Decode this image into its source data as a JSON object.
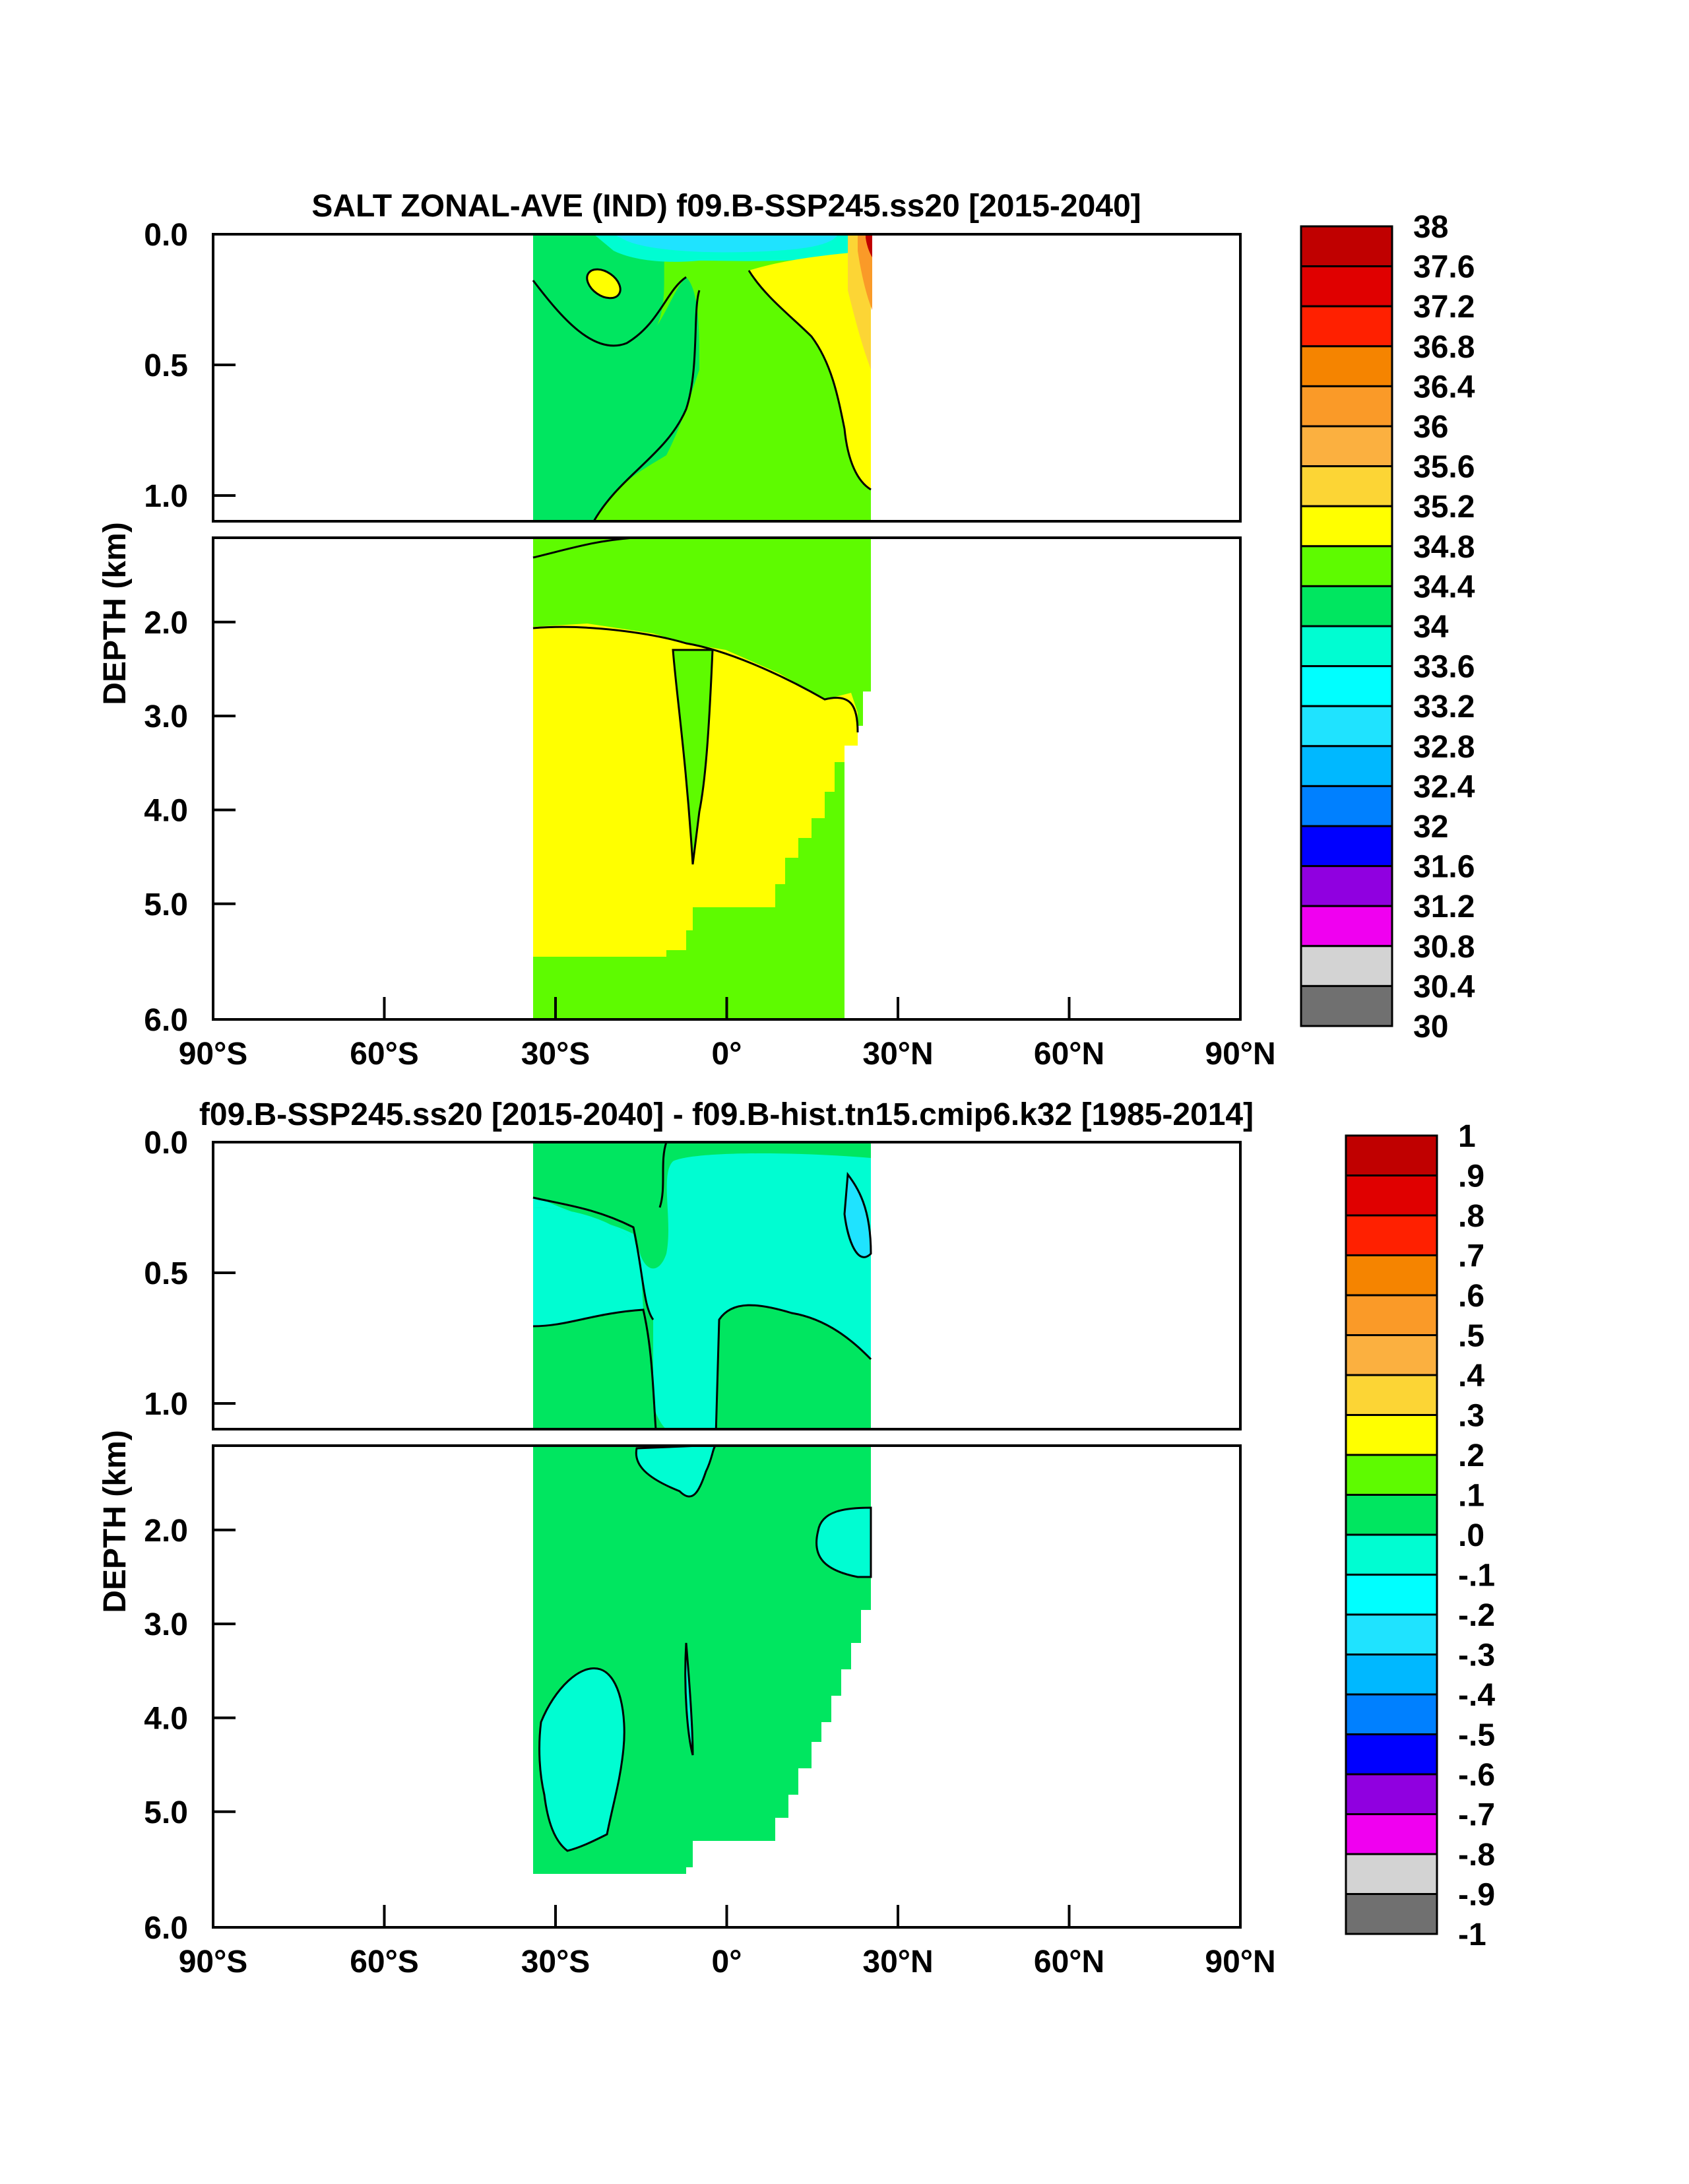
{
  "chart_data": [
    {
      "type": "heatmap",
      "title": "SALT ZONAL-AVE (IND) f09.B-SSP245.ss20 [2015-2040]",
      "ylabel": "DEPTH (km)",
      "xlabel": "",
      "xlim": [
        -90,
        90
      ],
      "ylim": [
        0,
        6
      ],
      "x_tick_labels": [
        "90°S",
        "60°S",
        "30°S",
        "0°",
        "30°N",
        "60°N",
        "90°N"
      ],
      "y_tick_labels_upper": [
        "0.0",
        "0.5",
        "1.0"
      ],
      "y_tick_labels_lower": [
        "2.0",
        "3.0",
        "4.0",
        "5.0",
        "6.0"
      ],
      "colorbar": {
        "labels": [
          "38",
          "37.6",
          "37.2",
          "36.8",
          "36.4",
          "36",
          "35.6",
          "35.2",
          "34.8",
          "34.4",
          "34",
          "33.6",
          "33.2",
          "32.8",
          "32.4",
          "32",
          "31.6",
          "31.2",
          "30.8",
          "30.4",
          "30"
        ],
        "colors": [
          "#c00000",
          "#e00000",
          "#ff2000",
          "#f58400",
          "#fa9a28",
          "#fbb040",
          "#fcd535",
          "#ffff00",
          "#5efb00",
          "#00e660",
          "#00fdd2",
          "#00ffff",
          "#1fe3ff",
          "#00b8ff",
          "#0080ff",
          "#0000ff",
          "#9000e0",
          "#f000f0",
          "#d3d3d3",
          "#707070"
        ]
      },
      "regions": {
        "ocean_lat_range": [
          -34,
          25
        ],
        "deep_fill_level": "34.8-35.2",
        "mid_fill_level": "34.4-34.8",
        "surface_fill_level": "34.0-34.4",
        "north_surface_max": "36.4-37.6",
        "south_fresh_surface": "33.2-34.0"
      }
    },
    {
      "type": "heatmap",
      "title": "f09.B-SSP245.ss20 [2015-2040] - f09.B-hist.tn15.cmip6.k32 [1985-2014]",
      "ylabel": "DEPTH (km)",
      "xlabel": "",
      "xlim": [
        -90,
        90
      ],
      "ylim": [
        0,
        6
      ],
      "x_tick_labels": [
        "90°S",
        "60°S",
        "30°S",
        "0°",
        "30°N",
        "60°N",
        "90°N"
      ],
      "y_tick_labels_upper": [
        "0.0",
        "0.5",
        "1.0"
      ],
      "y_tick_labels_lower": [
        "2.0",
        "3.0",
        "4.0",
        "5.0",
        "6.0"
      ],
      "colorbar": {
        "labels": [
          "1",
          ".9",
          ".8",
          ".7",
          ".6",
          ".5",
          ".4",
          ".3",
          ".2",
          ".1",
          ".0",
          "-.1",
          "-.2",
          "-.3",
          "-.4",
          "-.5",
          "-.6",
          "-.7",
          "-.8",
          "-.9",
          "-1"
        ],
        "colors": [
          "#c00000",
          "#e00000",
          "#ff2000",
          "#f58400",
          "#fa9a28",
          "#fbb040",
          "#fcd535",
          "#ffff00",
          "#5efb00",
          "#00e660",
          "#00fdd2",
          "#00ffff",
          "#1fe3ff",
          "#00b8ff",
          "#0080ff",
          "#0000ff",
          "#9000e0",
          "#f000f0",
          "#d3d3d3",
          "#707070"
        ]
      },
      "regions": {
        "ocean_lat_range": [
          -34,
          25
        ],
        "background_level": "0.0-0.1",
        "negative_level": "-0.1-0.0",
        "surface_positive_level": "0.0-0.1"
      }
    }
  ]
}
